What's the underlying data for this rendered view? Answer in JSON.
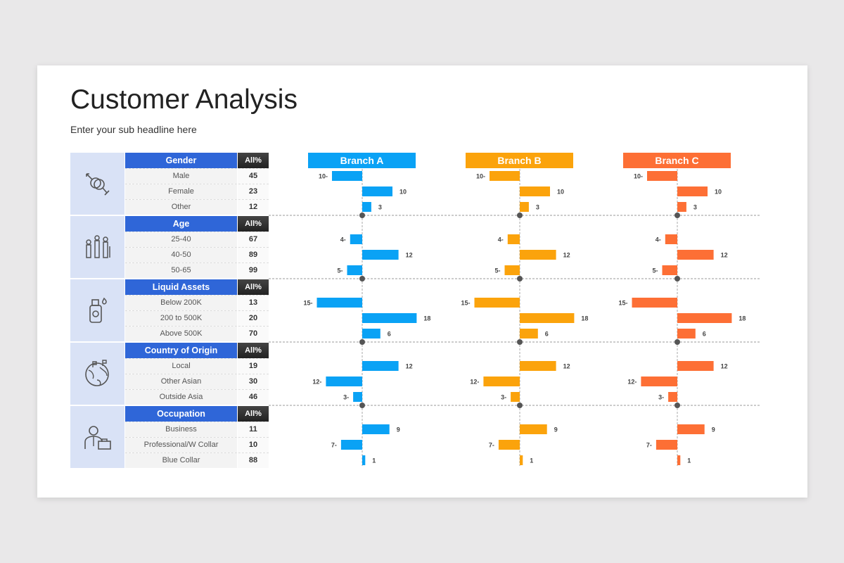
{
  "title": "Customer Analysis",
  "subtitle": "Enter your sub headline here",
  "all_label": "All%",
  "sections": [
    {
      "name": "Gender",
      "icon": "gender-icon",
      "rows": [
        {
          "label": "Male",
          "all": 45
        },
        {
          "label": "Female",
          "all": 23
        },
        {
          "label": "Other",
          "all": 12
        }
      ]
    },
    {
      "name": "Age",
      "icon": "age-group-icon",
      "rows": [
        {
          "label": "25-40",
          "all": 67
        },
        {
          "label": "40-50",
          "all": 89
        },
        {
          "label": "50-65",
          "all": 99
        }
      ]
    },
    {
      "name": "Liquid Assets",
      "icon": "assets-bottle-icon",
      "rows": [
        {
          "label": "Below 200K",
          "all": 13
        },
        {
          "label": "200 to 500K",
          "all": 20
        },
        {
          "label": "Above 500K",
          "all": 70
        }
      ]
    },
    {
      "name": "Country of Origin",
      "icon": "globe-icon",
      "rows": [
        {
          "label": "Local",
          "all": 19
        },
        {
          "label": "Other Asian",
          "all": 30
        },
        {
          "label": "Outside Asia",
          "all": 46
        }
      ]
    },
    {
      "name": "Occupation",
      "icon": "businessman-icon",
      "rows": [
        {
          "label": "Business",
          "all": 11
        },
        {
          "label": "Professional/W Collar",
          "all": 10
        },
        {
          "label": "Blue Collar",
          "all": 88
        }
      ]
    }
  ],
  "chart_data": {
    "type": "bar",
    "orientation": "horizontal diverging",
    "categories": [
      "Male",
      "Female",
      "Other",
      "25-40",
      "40-50",
      "50-65",
      "Below 200K",
      "200 to 500K",
      "Above 500K",
      "Local",
      "Other Asian",
      "Outside Asia",
      "Business",
      "Professional/W Collar",
      "Blue Collar"
    ],
    "series": [
      {
        "name": "Branch A",
        "color": "#0aa2f5",
        "values": [
          -10,
          10,
          3,
          -4,
          12,
          -5,
          -15,
          18,
          6,
          12,
          -12,
          -3,
          9,
          -7,
          1
        ]
      },
      {
        "name": "Branch B",
        "color": "#fba30c",
        "values": [
          -10,
          10,
          3,
          -4,
          12,
          -5,
          -15,
          18,
          6,
          12,
          -12,
          -3,
          9,
          -7,
          1
        ]
      },
      {
        "name": "Branch C",
        "color": "#fd6f35",
        "values": [
          -10,
          10,
          3,
          -4,
          12,
          -5,
          -15,
          18,
          6,
          12,
          -12,
          -3,
          9,
          -7,
          1
        ]
      }
    ]
  }
}
